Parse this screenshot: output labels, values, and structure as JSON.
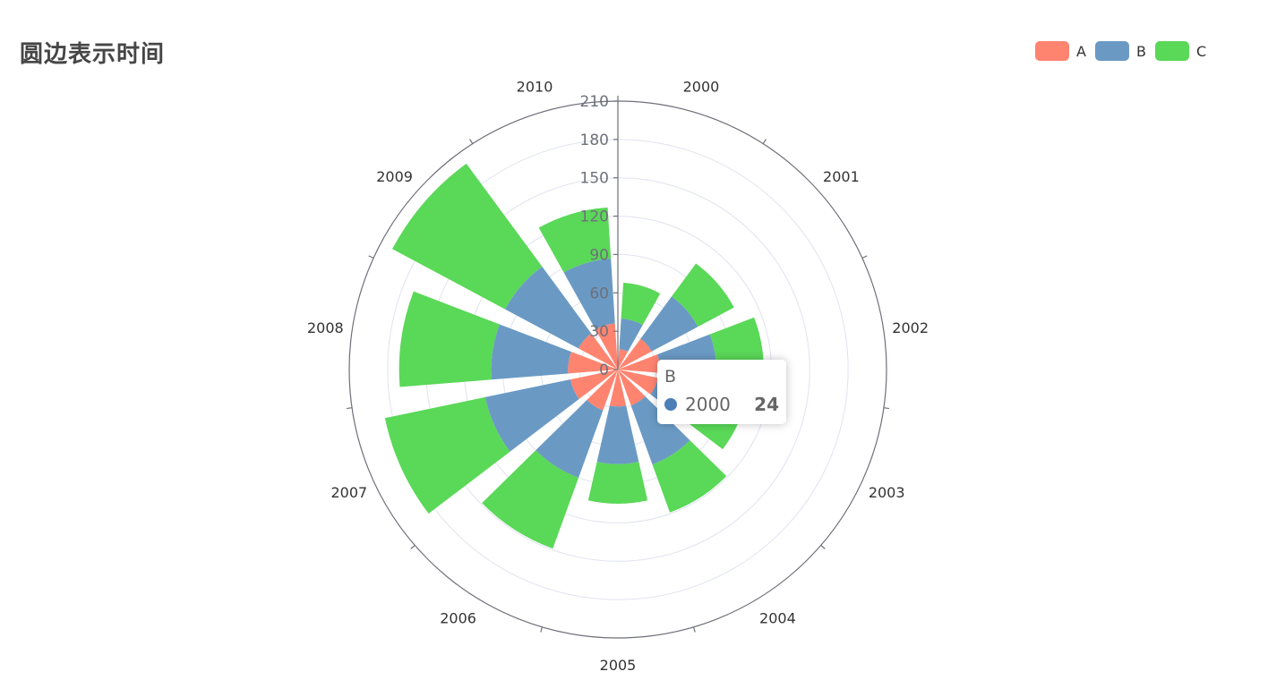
{
  "title": "圆边表示时间",
  "legend": [
    {
      "name": "A",
      "color": "#ff8470"
    },
    {
      "name": "B",
      "color": "#6a9ac4"
    },
    {
      "name": "C",
      "color": "#5ad858"
    }
  ],
  "tooltip": {
    "series": "B",
    "name": "2000",
    "value": "24",
    "color": "#4b7fb6"
  },
  "chart_data": {
    "type": "bar",
    "subtype": "polar-stacked",
    "categories": [
      "2000",
      "2001",
      "2002",
      "2003",
      "2004",
      "2005",
      "2006",
      "2007",
      "2008",
      "2009",
      "2010"
    ],
    "series": [
      {
        "name": "A",
        "values": [
          16,
          30,
          33,
          32,
          30,
          29,
          34,
          38,
          39,
          35,
          36
        ]
      },
      {
        "name": "B",
        "values": [
          24,
          41,
          44,
          38,
          49,
          45,
          56,
          68,
          60,
          65,
          51
        ]
      },
      {
        "name": "C",
        "values": [
          28,
          32,
          37,
          33,
          40,
          31,
          59,
          80,
          72,
          100,
          40
        ]
      }
    ],
    "radius_axis": {
      "min": 0,
      "max": 210,
      "interval": 30,
      "labels": [
        "0",
        "30",
        "60",
        "90",
        "120",
        "150",
        "180",
        "210"
      ]
    },
    "angle_axis": {
      "start": "top",
      "direction": "clockwise"
    },
    "legend_position": "top-right"
  }
}
